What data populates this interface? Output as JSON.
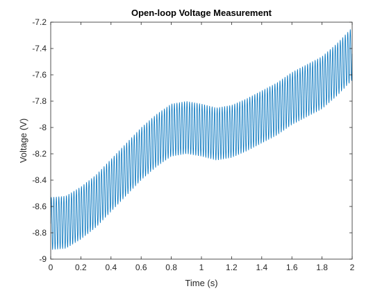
{
  "chart_data": {
    "type": "line",
    "title": "Open-loop Voltage Measurement",
    "xlabel": "Time (s)",
    "ylabel": "Voltage (V)",
    "xlim": [
      0,
      2
    ],
    "ylim": [
      -9,
      -7.2
    ],
    "xticks": [
      0,
      0.2,
      0.4,
      0.6,
      0.8,
      1,
      1.2,
      1.4,
      1.6,
      1.8,
      2
    ],
    "xtick_labels": [
      "0",
      "0.2",
      "0.4",
      "0.6",
      "0.8",
      "1",
      "1.2",
      "1.4",
      "1.6",
      "1.8",
      "2"
    ],
    "yticks": [
      -9,
      -8.8,
      -8.6,
      -8.4,
      -8.2,
      -8,
      -7.8,
      -7.6,
      -7.4,
      -7.2
    ],
    "ytick_labels": [
      "-9",
      "-8.8",
      "-8.6",
      "-8.4",
      "-8.2",
      "-8",
      "-7.8",
      "-7.6",
      "-7.4",
      "-7.2"
    ],
    "grid": false,
    "legend": "none",
    "oscillation": {
      "frequency_hz": 60,
      "amplitude_v": 0.2
    },
    "series": [
      {
        "color": "#0072bd",
        "envelope_center": {
          "x": [
            0,
            0.1,
            0.2,
            0.3,
            0.4,
            0.5,
            0.6,
            0.7,
            0.8,
            0.9,
            1.0,
            1.1,
            1.2,
            1.3,
            1.4,
            1.5,
            1.6,
            1.7,
            1.8,
            1.9,
            2.0
          ],
          "y": [
            -8.73,
            -8.72,
            -8.65,
            -8.56,
            -8.44,
            -8.32,
            -8.2,
            -8.1,
            -8.02,
            -8.0,
            -8.02,
            -8.05,
            -8.03,
            -7.98,
            -7.92,
            -7.86,
            -7.78,
            -7.72,
            -7.66,
            -7.56,
            -7.44
          ]
        }
      }
    ]
  }
}
